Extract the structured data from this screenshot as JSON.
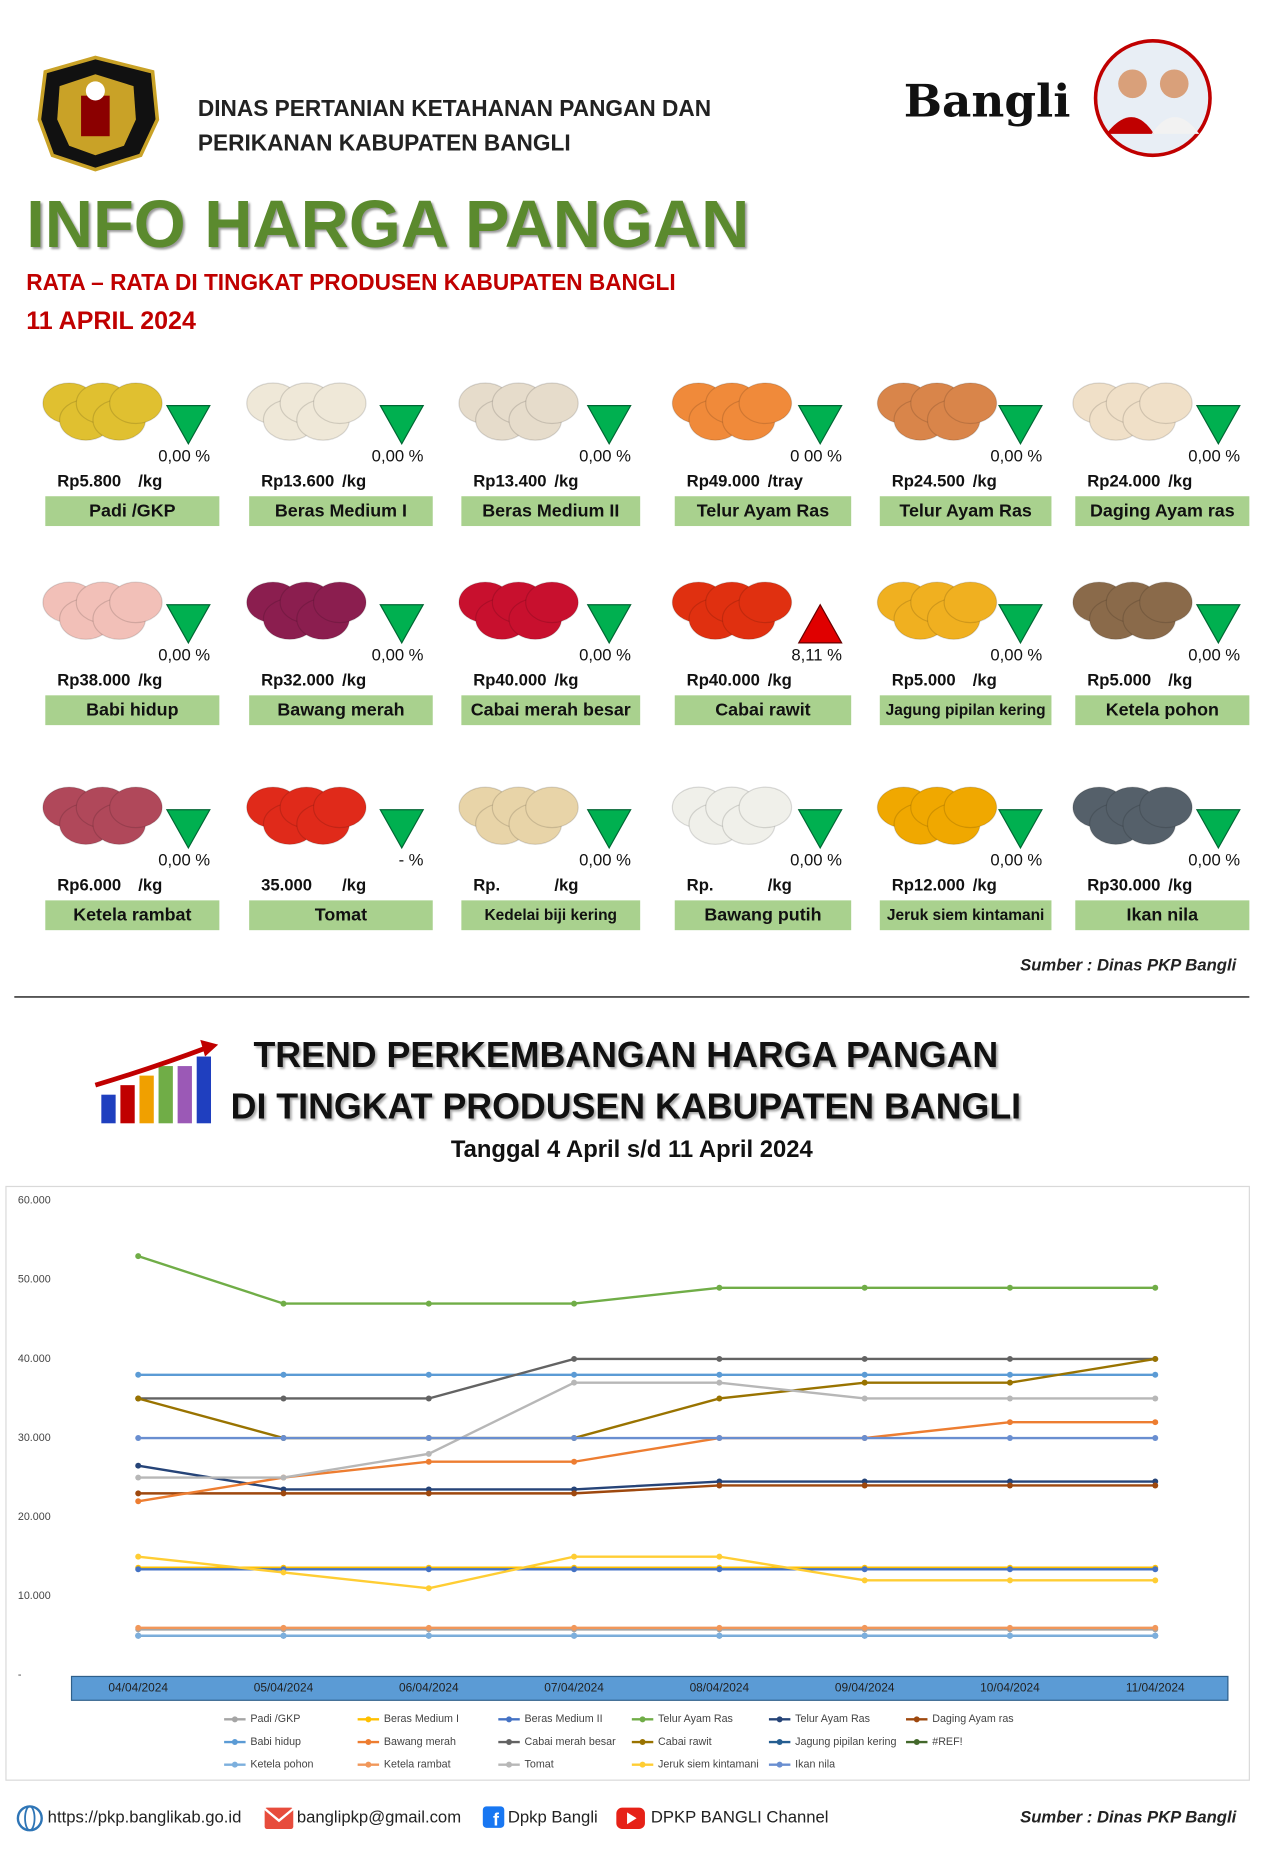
{
  "header": {
    "org_line1": "DINAS PERTANIAN KETAHANAN PANGAN DAN",
    "org_line2": "PERIKANAN KABUPATEN BANGLI",
    "logo_text": "Bangli",
    "title": "INFO HARGA PANGAN",
    "subtitle": "RATA – RATA DI TINGKAT PRODUSEN KABUPATEN BANGLI",
    "date": "11 APRIL 2024"
  },
  "items": [
    {
      "name": "Padi /GKP",
      "price": "Rp5.800",
      "unit": "/kg",
      "change": "0,00",
      "pct": "%",
      "trend": "down"
    },
    {
      "name": "Beras Medium I",
      "price": "Rp13.600",
      "unit": "/kg",
      "change": "0,00",
      "pct": "%",
      "trend": "down"
    },
    {
      "name": "Beras Medium II",
      "price": "Rp13.400",
      "unit": "/kg",
      "change": "0,00",
      "pct": "%",
      "trend": "down"
    },
    {
      "name": "Telur Ayam Ras",
      "price": "Rp49.000",
      "unit": "/tray",
      "change": "0 00",
      "pct": "%",
      "trend": "down"
    },
    {
      "name": "Telur Ayam Ras",
      "price": "Rp24.500",
      "unit": "/kg",
      "change": "0,00",
      "pct": "%",
      "trend": "down"
    },
    {
      "name": "Daging Ayam ras",
      "price": "Rp24.000",
      "unit": "/kg",
      "change": "0,00",
      "pct": "%",
      "trend": "down"
    },
    {
      "name": "Babi hidup",
      "price": "Rp38.000",
      "unit": "/kg",
      "change": "0,00",
      "pct": "%",
      "trend": "down"
    },
    {
      "name": "Bawang merah",
      "price": "Rp32.000",
      "unit": "/kg",
      "change": "0,00",
      "pct": "%",
      "trend": "down"
    },
    {
      "name": "Cabai merah besar",
      "price": "Rp40.000",
      "unit": "/kg",
      "change": "0,00",
      "pct": "%",
      "trend": "down"
    },
    {
      "name": "Cabai rawit",
      "price": "Rp40.000",
      "unit": "/kg",
      "change": "8,11",
      "pct": "%",
      "trend": "up"
    },
    {
      "name": "Jagung pipilan kering",
      "price": "Rp5.000",
      "unit": "/kg",
      "change": "0,00",
      "pct": "%",
      "trend": "down"
    },
    {
      "name": "Ketela pohon",
      "price": "Rp5.000",
      "unit": "/kg",
      "change": "0,00",
      "pct": "%",
      "trend": "down"
    },
    {
      "name": "Ketela rambat",
      "price": "Rp6.000",
      "unit": "/kg",
      "change": "0,00",
      "pct": "%",
      "trend": "down"
    },
    {
      "name": "Tomat",
      "price": "35.000",
      "unit": "/kg",
      "change": "-",
      "pct": "%",
      "trend": "down"
    },
    {
      "name": "Kedelai biji kering",
      "price": "Rp.",
      "unit": "/kg",
      "change": "0,00",
      "pct": "%",
      "trend": "down"
    },
    {
      "name": "Bawang putih",
      "price": "Rp.",
      "unit": "/kg",
      "change": "0,00",
      "pct": "%",
      "trend": "down"
    },
    {
      "name": "Jeruk siem kintamani",
      "price": "Rp12.000",
      "unit": "/kg",
      "change": "0,00",
      "pct": "%",
      "trend": "down"
    },
    {
      "name": "Ikan nila",
      "price": "Rp30.000",
      "unit": "/kg",
      "change": "0,00",
      "pct": "%",
      "trend": "down"
    }
  ],
  "source": "Sumber : Dinas PKP Bangli",
  "trend": {
    "title_line1": "TREND PERKEMBANGAN HARGA PANGAN",
    "title_line2": "DI TINGKAT PRODUSEN KABUPATEN BANGLI",
    "period": "Tanggal 4 April s/d 11 April 2024"
  },
  "chart_data": {
    "type": "line",
    "categories": [
      "04/04/2024",
      "05/04/2024",
      "06/04/2024",
      "07/04/2024",
      "08/04/2024",
      "09/04/2024",
      "10/04/2024",
      "11/04/2024"
    ],
    "ylim": [
      0,
      60000
    ],
    "yticks": [
      {
        "value": 0,
        "label": "-"
      },
      {
        "value": 10000,
        "label": "10.000"
      },
      {
        "value": 20000,
        "label": "20.000"
      },
      {
        "value": 30000,
        "label": "30.000"
      },
      {
        "value": 40000,
        "label": "40.000"
      },
      {
        "value": 50000,
        "label": "50.000"
      },
      {
        "value": 60000,
        "label": "60.000"
      }
    ],
    "series": [
      {
        "name": "Padi /GKP",
        "color": "#a5a5a5",
        "values": [
          5800,
          5800,
          5800,
          5800,
          5800,
          5800,
          5800,
          5800
        ]
      },
      {
        "name": "Beras Medium I",
        "color": "#ffc000",
        "values": [
          13600,
          13600,
          13600,
          13600,
          13600,
          13600,
          13600,
          13600
        ]
      },
      {
        "name": "Beras Medium II",
        "color": "#4472c4",
        "values": [
          13400,
          13400,
          13400,
          13400,
          13400,
          13400,
          13400,
          13400
        ]
      },
      {
        "name": "Telur Ayam Ras",
        "color": "#70ad47",
        "values": [
          53000,
          47000,
          47000,
          47000,
          49000,
          49000,
          49000,
          49000
        ]
      },
      {
        "name": "Telur Ayam Ras",
        "color": "#264478",
        "values": [
          26500,
          23500,
          23500,
          23500,
          24500,
          24500,
          24500,
          24500
        ]
      },
      {
        "name": "Daging Ayam ras",
        "color": "#9e480e",
        "values": [
          23000,
          23000,
          23000,
          23000,
          24000,
          24000,
          24000,
          24000
        ]
      },
      {
        "name": "Babi hidup",
        "color": "#5b9bd5",
        "values": [
          38000,
          38000,
          38000,
          38000,
          38000,
          38000,
          38000,
          38000
        ]
      },
      {
        "name": "Bawang merah",
        "color": "#ed7d31",
        "values": [
          22000,
          25000,
          27000,
          27000,
          30000,
          30000,
          32000,
          32000
        ]
      },
      {
        "name": "Cabai merah besar",
        "color": "#636363",
        "values": [
          35000,
          35000,
          35000,
          40000,
          40000,
          40000,
          40000,
          40000
        ]
      },
      {
        "name": "Cabai rawit",
        "color": "#997300",
        "values": [
          35000,
          30000,
          30000,
          30000,
          35000,
          37000,
          37000,
          40000
        ]
      },
      {
        "name": "Jagung pipilan kering",
        "color": "#255e91",
        "values": [
          5000,
          5000,
          5000,
          5000,
          5000,
          5000,
          5000,
          5000
        ]
      },
      {
        "name": "#REF!",
        "color": "#43682b",
        "values": [
          null,
          null,
          null,
          null,
          null,
          null,
          null,
          null
        ]
      },
      {
        "name": "Ketela pohon",
        "color": "#7cafdd",
        "values": [
          5000,
          5000,
          5000,
          5000,
          5000,
          5000,
          5000,
          5000
        ]
      },
      {
        "name": "Ketela rambat",
        "color": "#f1975a",
        "values": [
          6000,
          6000,
          6000,
          6000,
          6000,
          6000,
          6000,
          6000
        ]
      },
      {
        "name": "Tomat",
        "color": "#b7b7b7",
        "values": [
          25000,
          25000,
          28000,
          37000,
          37000,
          35000,
          35000,
          35000
        ]
      },
      {
        "name": "Jeruk siem kintamani",
        "color": "#ffcd33",
        "values": [
          15000,
          13000,
          11000,
          15000,
          15000,
          12000,
          12000,
          12000
        ]
      },
      {
        "name": "Ikan nila",
        "color": "#698ed0",
        "values": [
          30000,
          30000,
          30000,
          30000,
          30000,
          30000,
          30000,
          30000
        ]
      }
    ]
  },
  "footer": {
    "website": "https://pkp.banglikab.go.id",
    "email": "banglipkp@gmail.com",
    "facebook": "Dpkp Bangli",
    "youtube": "DPKP BANGLI Channel",
    "source": "Sumber : Dinas PKP Bangli"
  }
}
